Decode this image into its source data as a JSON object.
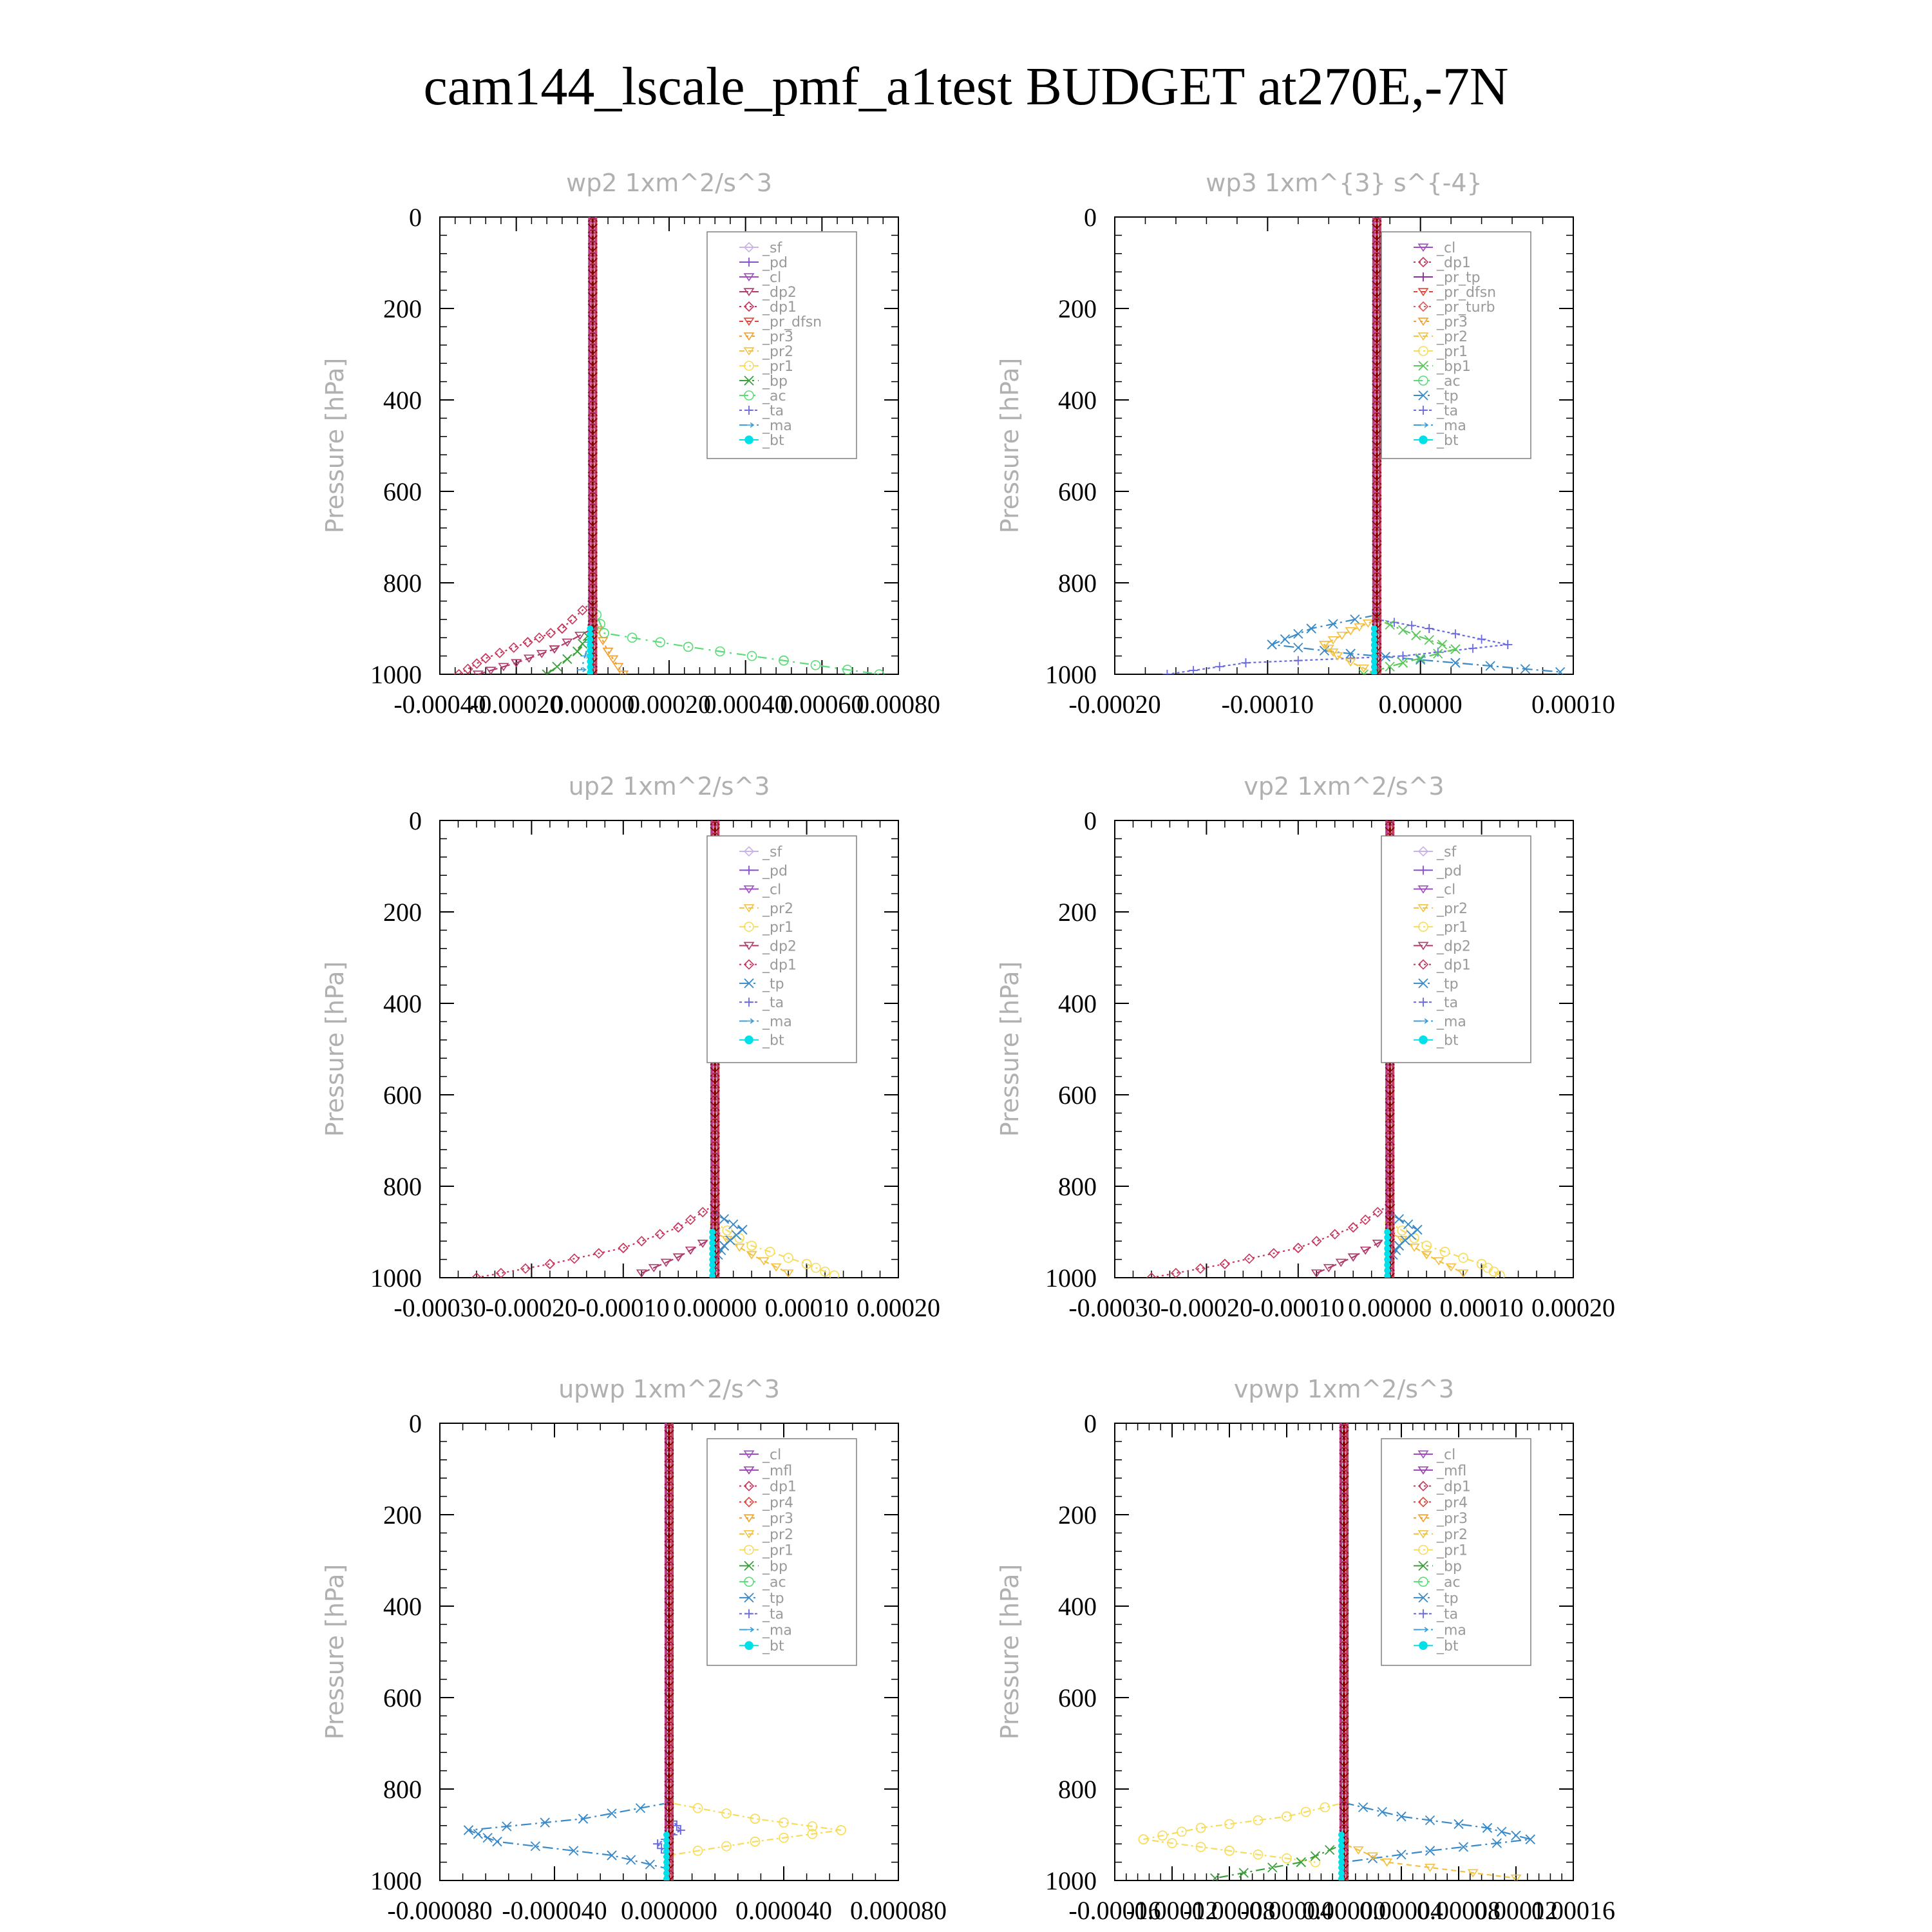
{
  "figure_title": "cam144_lscale_pmf_a1test  BUDGET at270E,-7N",
  "colors": {
    "_sf": "#c9b3e8",
    "_pd": "#8a4fc9",
    "_cl": "#a04cc0",
    "_mfl": "#9a3fb0",
    "_dp2": "#b03a6a",
    "_dp1": "#c8345a",
    "_pr_tp": "#8a2f9e",
    "_pr_dfsn": "#e0453a",
    "_pr_turb": "#e05a5a",
    "_pr4": "#e0453a",
    "_pr3": "#f0a030",
    "_pr2": "#f5c040",
    "_pr1": "#f7dc5a",
    "_bp1": "#5ac85a",
    "_bp": "#3aa03a",
    "_ac": "#5adc78",
    "_tp": "#3a8ac8",
    "_ta": "#6a6ae0",
    "_ma": "#3aa0d8",
    "_bt": "#00e0e8",
    "dark": "#8b0000"
  },
  "chart_data": [
    {
      "type": "line",
      "title": "wp2   1xm^2/s^3",
      "ylabel": "Pressure [hPa]",
      "ylim": [
        0,
        1000
      ],
      "yticks": [
        "0",
        "200",
        "400",
        "600",
        "800",
        "1000"
      ],
      "xlim": [
        -0.0004,
        0.0008
      ],
      "xticks": [
        "-0.00040",
        "-0.00020",
        "0.00000",
        "0.00020",
        "0.00040",
        "0.00060",
        "0.00080"
      ],
      "legend": [
        "_sf",
        "_pd",
        "_cl",
        "_dp2",
        "_dp1",
        "_pr_dfsn",
        "_pr3",
        "_pr2",
        "_pr1",
        "_bp",
        "_ac",
        "_ta",
        "_ma",
        "_bt"
      ],
      "series": [
        {
          "name": "_ac",
          "x": [
            0,
            0,
            3e-05,
            0.00025,
            0.0005,
            0.00075
          ],
          "y": [
            0,
            850,
            910,
            940,
            970,
            1000
          ]
        },
        {
          "name": "_dp1",
          "x": [
            0,
            0,
            -8e-05,
            -0.00017,
            -0.00028,
            -0.00035
          ],
          "y": [
            0,
            840,
            900,
            930,
            965,
            1000
          ]
        },
        {
          "name": "_dp2",
          "x": [
            0,
            0,
            -0.0001,
            -0.0002,
            -0.0003
          ],
          "y": [
            0,
            900,
            945,
            975,
            1000
          ]
        },
        {
          "name": "_pr3",
          "x": [
            0,
            0,
            4e-05,
            8e-05
          ],
          "y": [
            0,
            880,
            950,
            1000
          ]
        },
        {
          "name": "_bp",
          "x": [
            0,
            0,
            -4e-05,
            -0.00012
          ],
          "y": [
            0,
            900,
            950,
            1000
          ]
        },
        {
          "name": "_ma",
          "x": [
            0,
            0,
            -3e-05
          ],
          "y": [
            0,
            900,
            990
          ]
        }
      ]
    },
    {
      "type": "line",
      "title": "wp3   1xm^{3} s^{-4}",
      "ylabel": "Pressure [hPa]",
      "ylim": [
        0,
        1000
      ],
      "yticks": [
        "0",
        "200",
        "400",
        "600",
        "800",
        "1000"
      ],
      "xlim": [
        -0.0002,
        0.00015
      ],
      "xticks": [
        "-0.00020",
        "-0.00010",
        "0.00000",
        "0.00010"
      ],
      "legend": [
        "_cl",
        "_dp1",
        "_pr_tp",
        "_pr_dfsn",
        "_pr_turb",
        "_pr3",
        "_pr2",
        "_pr1",
        "_bp1",
        "_ac",
        "_tp",
        "_ta",
        "_ma",
        "_bt"
      ],
      "series": [
        {
          "name": "_ta",
          "x": [
            0,
            0,
            4e-05,
            0.0001,
            2e-05,
            -0.0001,
            -0.00016
          ],
          "y": [
            0,
            880,
            900,
            935,
            960,
            975,
            1000
          ]
        },
        {
          "name": "_tp",
          "x": [
            0,
            0,
            -5e-05,
            -8e-05,
            -2e-05,
            6e-05,
            0.00014
          ],
          "y": [
            0,
            870,
            900,
            935,
            955,
            975,
            995
          ]
        },
        {
          "name": "_pr2",
          "x": [
            0,
            0,
            -2e-05,
            -4e-05,
            -3e-05,
            0
          ],
          "y": [
            0,
            880,
            905,
            935,
            960,
            1000
          ]
        },
        {
          "name": "_bp1",
          "x": [
            0,
            0,
            3e-05,
            6e-05,
            2e-05,
            -1e-05
          ],
          "y": [
            0,
            880,
            915,
            945,
            975,
            1000
          ]
        }
      ]
    },
    {
      "type": "line",
      "title": "up2   1xm^2/s^3",
      "ylabel": "Pressure [hPa]",
      "ylim": [
        0,
        1000
      ],
      "yticks": [
        "0",
        "200",
        "400",
        "600",
        "800",
        "1000"
      ],
      "xlim": [
        -0.0003,
        0.0002
      ],
      "xticks": [
        "-0.00030",
        "-0.00020",
        "-0.00010",
        "0.00000",
        "0.00010",
        "0.00020"
      ],
      "legend": [
        "_sf",
        "_pd",
        "_cl",
        "_pr2",
        "_pr1",
        "_dp2",
        "_dp1",
        "_tp",
        "_ta",
        "_ma",
        "_bt"
      ],
      "series": [
        {
          "name": "_dp1",
          "x": [
            0,
            0,
            -4e-05,
            -0.0001,
            -0.00018,
            -0.00026
          ],
          "y": [
            0,
            840,
            890,
            935,
            970,
            1000
          ]
        },
        {
          "name": "_pr1",
          "x": [
            0,
            0,
            4e-05,
            0.0001,
            0.00013
          ],
          "y": [
            0,
            880,
            930,
            970,
            995
          ]
        },
        {
          "name": "_pr2",
          "x": [
            0,
            0,
            4e-05,
            8e-05
          ],
          "y": [
            0,
            900,
            950,
            990
          ]
        },
        {
          "name": "_dp2",
          "x": [
            0,
            0,
            -4e-05,
            -8e-05
          ],
          "y": [
            0,
            910,
            955,
            990
          ]
        },
        {
          "name": "_tp",
          "x": [
            0,
            0,
            3e-05,
            1e-05,
            0
          ],
          "y": [
            0,
            860,
            895,
            930,
            960
          ]
        }
      ]
    },
    {
      "type": "line",
      "title": "vp2   1xm^2/s^3",
      "ylabel": "Pressure [hPa]",
      "ylim": [
        0,
        1000
      ],
      "yticks": [
        "0",
        "200",
        "400",
        "600",
        "800",
        "1000"
      ],
      "xlim": [
        -0.0003,
        0.0002
      ],
      "xticks": [
        "-0.00030",
        "-0.00020",
        "-0.00010",
        "0.00000",
        "0.00010",
        "0.00020"
      ],
      "legend": [
        "_sf",
        "_pd",
        "_cl",
        "_pr2",
        "_pr1",
        "_dp2",
        "_dp1",
        "_tp",
        "_ta",
        "_ma",
        "_bt"
      ],
      "series": [
        {
          "name": "_dp1",
          "x": [
            0,
            0,
            -4e-05,
            -0.0001,
            -0.00018,
            -0.00026
          ],
          "y": [
            0,
            840,
            890,
            935,
            970,
            1000
          ]
        },
        {
          "name": "_pr1",
          "x": [
            0,
            0,
            4e-05,
            0.0001,
            0.00012
          ],
          "y": [
            0,
            880,
            930,
            970,
            995
          ]
        },
        {
          "name": "_pr2",
          "x": [
            0,
            0,
            4e-05,
            8e-05
          ],
          "y": [
            0,
            900,
            950,
            990
          ]
        },
        {
          "name": "_dp2",
          "x": [
            0,
            0,
            -4e-05,
            -8e-05
          ],
          "y": [
            0,
            910,
            955,
            990
          ]
        },
        {
          "name": "_tp",
          "x": [
            0,
            0,
            3e-05,
            1e-05,
            0
          ],
          "y": [
            0,
            860,
            895,
            930,
            960
          ]
        }
      ]
    },
    {
      "type": "line",
      "title": "upwp   1xm^2/s^3",
      "ylabel": "Pressure [hPa]",
      "ylim": [
        0,
        1000
      ],
      "yticks": [
        "0",
        "200",
        "400",
        "600",
        "800",
        "1000"
      ],
      "xlim": [
        -8e-05,
        8e-05
      ],
      "xticks": [
        "-0.000080",
        "-0.000040",
        "0.000000",
        "0.000040",
        "0.000080"
      ],
      "legend": [
        "_cl",
        "_mfl",
        "_dp1",
        "_pr4",
        "_pr3",
        "_pr2",
        "_pr1",
        "_bp",
        "_ac",
        "_tp",
        "_ta",
        "_ma",
        "_bt"
      ],
      "series": [
        {
          "name": "_tp",
          "x": [
            0,
            0,
            -3e-05,
            -7e-05,
            -6e-05,
            -2e-05,
            0
          ],
          "y": [
            0,
            830,
            865,
            890,
            915,
            945,
            975
          ]
        },
        {
          "name": "_pr1",
          "x": [
            0,
            0,
            3e-05,
            6e-05,
            3e-05,
            0
          ],
          "y": [
            0,
            830,
            865,
            890,
            915,
            945
          ]
        },
        {
          "name": "_ta",
          "x": [
            0,
            0,
            4e-06,
            -4e-06,
            0
          ],
          "y": [
            0,
            860,
            890,
            920,
            950
          ]
        }
      ]
    },
    {
      "type": "line",
      "title": "vpwp   1xm^2/s^3",
      "ylabel": "Pressure [hPa]",
      "ylim": [
        0,
        1000
      ],
      "yticks": [
        "0",
        "200",
        "400",
        "600",
        "800",
        "1000"
      ],
      "xlim": [
        -0.00016,
        0.00016
      ],
      "xticks": [
        "-0.00016",
        "-0.00012",
        "-0.00008",
        "-0.00004",
        "0.00000",
        "0.00004",
        "0.00008",
        "0.00012",
        "0.00016"
      ],
      "legend": [
        "_cl",
        "_mfl",
        "_dp1",
        "_pr4",
        "_pr3",
        "_pr2",
        "_pr1",
        "_bp",
        "_ac",
        "_tp",
        "_ta",
        "_ma",
        "_bt"
      ],
      "series": [
        {
          "name": "_pr1",
          "x": [
            0,
            0,
            -4e-05,
            -0.0001,
            -0.00014,
            -8e-05,
            -2e-05
          ],
          "y": [
            0,
            830,
            860,
            885,
            910,
            935,
            960
          ]
        },
        {
          "name": "_tp",
          "x": [
            0,
            0,
            4e-05,
            0.0001,
            0.00013,
            6e-05,
            0
          ],
          "y": [
            0,
            830,
            860,
            885,
            910,
            935,
            960
          ]
        },
        {
          "name": "_bp",
          "x": [
            0,
            0,
            -3e-05,
            -9e-05
          ],
          "y": [
            0,
            920,
            960,
            995
          ]
        },
        {
          "name": "_pr2",
          "x": [
            0,
            0,
            3e-05,
            0.00012
          ],
          "y": [
            0,
            920,
            960,
            995
          ]
        }
      ]
    }
  ]
}
